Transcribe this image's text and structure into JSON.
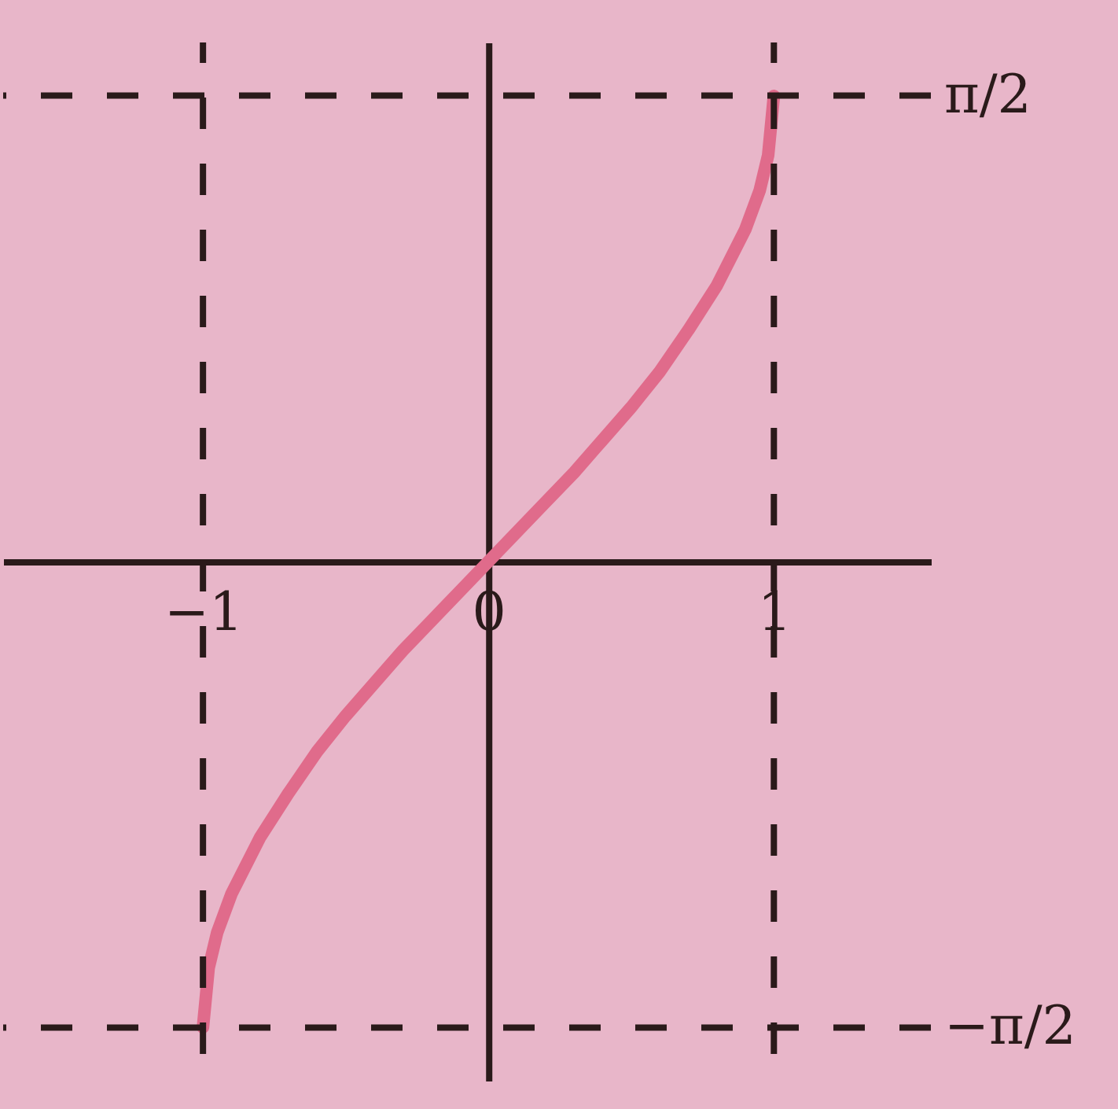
{
  "chart_data": {
    "type": "line",
    "x": [
      -1,
      -0.98,
      -0.95,
      -0.9,
      -0.8,
      -0.7,
      -0.6,
      -0.5,
      -0.4,
      -0.3,
      -0.2,
      -0.1,
      0,
      0.1,
      0.2,
      0.3,
      0.4,
      0.5,
      0.6,
      0.7,
      0.8,
      0.9,
      0.95,
      0.98,
      1
    ],
    "series": [
      {
        "color": "#e06b8b",
        "values": [
          -1.57,
          -1.37,
          -1.25,
          -1.12,
          -0.93,
          -0.78,
          -0.64,
          -0.52,
          -0.41,
          -0.3,
          -0.2,
          -0.1,
          0,
          0.1,
          0.2,
          0.3,
          0.41,
          0.52,
          0.64,
          0.78,
          0.93,
          1.12,
          1.25,
          1.37,
          1.57
        ]
      }
    ],
    "xlim": [
      -1.7,
      1.55
    ],
    "ylim": [
      -1.75,
      1.75
    ],
    "xticks": [
      {
        "value": -1,
        "label": "−1"
      },
      0,
      1
    ],
    "yticks": [
      {
        "value": -1.571,
        "label": "−π/2"
      },
      {
        "value": 1.571,
        "label": "π/2"
      }
    ],
    "ref_lines": [
      {
        "axis": "x",
        "value": -1,
        "color": "#2a1a1a",
        "line_style": "dashed"
      },
      {
        "axis": "x",
        "value": 1,
        "color": "#2a1a1a",
        "line_style": "dashed"
      },
      {
        "axis": "y",
        "value": 1.571,
        "color": "#2a1a1a",
        "line_style": "dashed"
      },
      {
        "axis": "y",
        "value": -1.571,
        "color": "#2a1a1a",
        "line_style": "dashed"
      }
    ]
  }
}
